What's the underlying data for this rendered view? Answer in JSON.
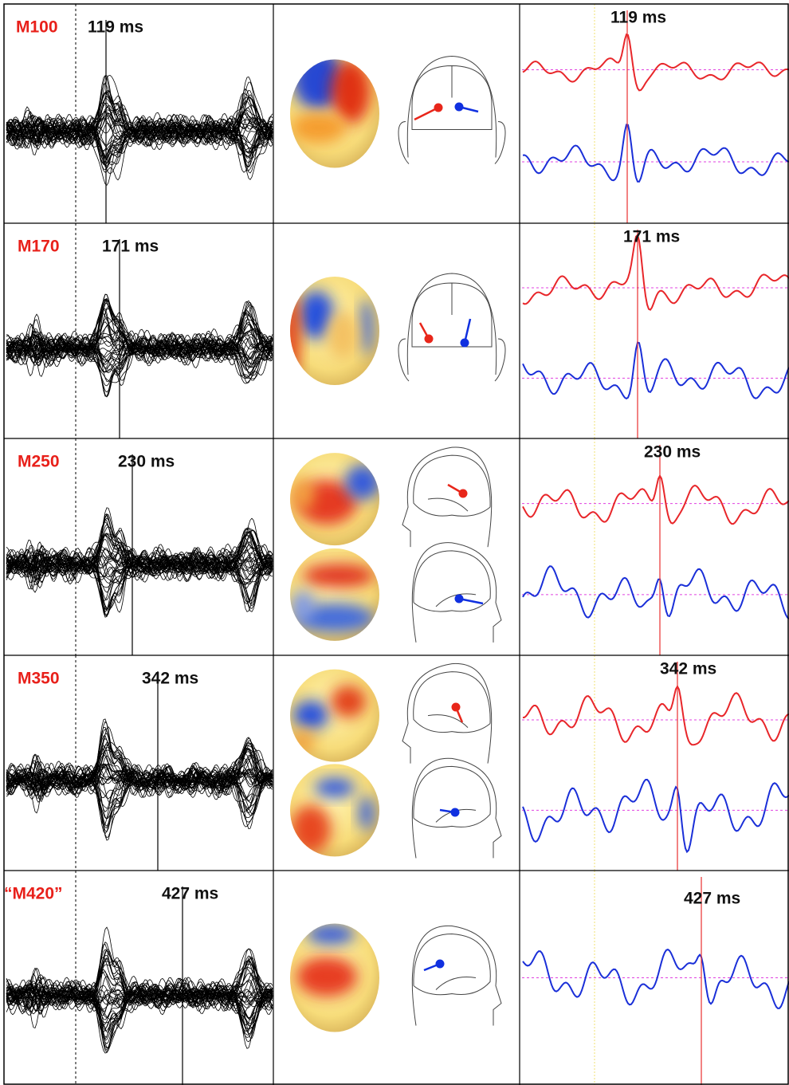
{
  "rows": [
    {
      "component": "M100",
      "latency": "119 ms"
    },
    {
      "component": "M170",
      "latency": "171 ms"
    },
    {
      "component": "M250",
      "latency": "230 ms"
    },
    {
      "component": "M350",
      "latency": "342 ms"
    },
    {
      "component": "“M420”",
      "latency": "427 ms"
    }
  ]
}
